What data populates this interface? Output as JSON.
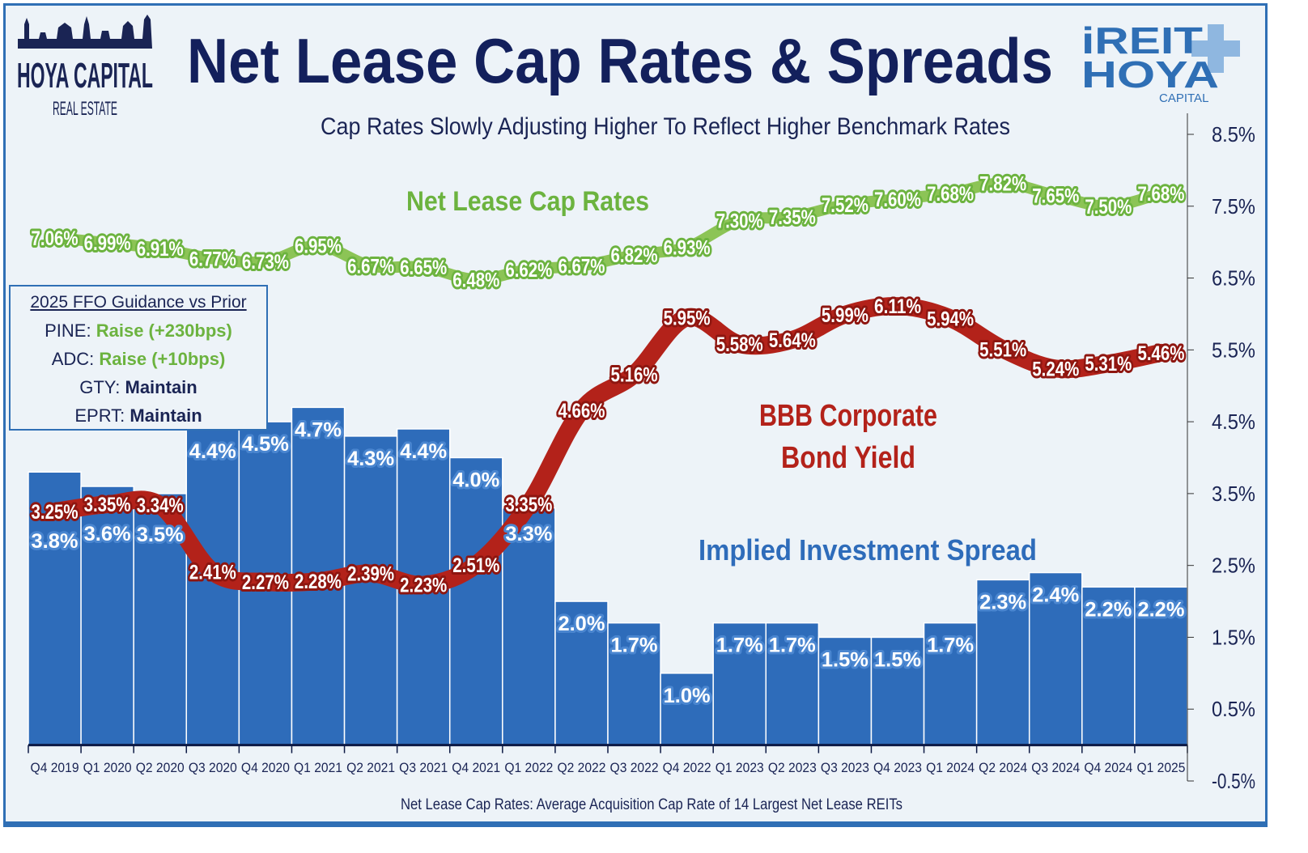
{
  "header": {
    "title": "Net Lease Cap Rates & Spreads",
    "subtitle": "Cap Rates Slowly Adjusting Higher To Reflect Higher Benchmark Rates",
    "left_logo": {
      "line1": "HOYA CAPITAL",
      "line2": "REAL ESTATE"
    },
    "right_logo": {
      "line1": "iREIT",
      "line2": "HOYA",
      "line3": "CAPITAL"
    }
  },
  "footer_note": "Net Lease Cap Rates: Average Acquisition Cap Rate of 14 Largest Net Lease REITs",
  "guidance_box": {
    "title": "2025 FFO Guidance vs Prior",
    "rows": [
      {
        "ticker": "PINE:",
        "value": "Raise (+230bps)",
        "status": "raise"
      },
      {
        "ticker": "ADC:",
        "value": "Raise (+10bps)",
        "status": "raise"
      },
      {
        "ticker": "GTY:",
        "value": "Maintain",
        "status": "maintain"
      },
      {
        "ticker": "EPRT:",
        "value": "Maintain",
        "status": "maintain"
      }
    ]
  },
  "chart_data": {
    "type": "bar+line",
    "categories": [
      "Q4 2019",
      "Q1 2020",
      "Q2 2020",
      "Q3 2020",
      "Q4 2020",
      "Q1 2021",
      "Q2 2021",
      "Q3 2021",
      "Q4 2021",
      "Q1 2022",
      "Q2 2022",
      "Q3 2022",
      "Q4 2022",
      "Q1 2023",
      "Q2 2023",
      "Q3 2023",
      "Q4 2023",
      "Q1 2024",
      "Q2 2024",
      "Q3 2024",
      "Q4 2024",
      "Q1 2025"
    ],
    "y_ticks": [
      "8.5%",
      "7.5%",
      "6.5%",
      "5.5%",
      "4.5%",
      "3.5%",
      "2.5%",
      "1.5%",
      "0.5%",
      "-0.5%"
    ],
    "ylim": [
      -0.5,
      8.5
    ],
    "y_axis_side": "right",
    "grid": false,
    "series": [
      {
        "name": "Implied Investment Spread",
        "type": "bar",
        "color": "#2e6cba",
        "values": [
          3.8,
          3.6,
          3.5,
          4.4,
          4.5,
          4.7,
          4.3,
          4.4,
          4.0,
          3.3,
          2.0,
          1.7,
          1.0,
          1.7,
          1.7,
          1.5,
          1.5,
          1.7,
          2.3,
          2.4,
          2.2,
          2.2
        ],
        "labels": [
          "3.8%",
          "3.6%",
          "3.5%",
          "4.4%",
          "4.5%",
          "4.7%",
          "4.3%",
          "4.4%",
          "4.0%",
          "3.3%",
          "2.0%",
          "1.7%",
          "1.0%",
          "1.7%",
          "1.7%",
          "1.5%",
          "1.5%",
          "1.7%",
          "2.3%",
          "2.4%",
          "2.2%",
          "2.2%"
        ]
      },
      {
        "name": "Net Lease Cap Rates",
        "type": "line",
        "color": "#8cc456",
        "label_color": "#6cb33f",
        "values": [
          7.06,
          6.99,
          6.91,
          6.77,
          6.73,
          6.95,
          6.67,
          6.65,
          6.48,
          6.62,
          6.67,
          6.82,
          6.93,
          7.3,
          7.35,
          7.52,
          7.6,
          7.68,
          7.82,
          7.65,
          7.5,
          7.68
        ],
        "labels": [
          "7.06%",
          "6.99%",
          "6.91%",
          "6.77%",
          "6.73%",
          "6.95%",
          "6.67%",
          "6.65%",
          "6.48%",
          "6.62%",
          "6.67%",
          "6.82%",
          "6.93%",
          "7.30%",
          "7.35%",
          "7.52%",
          "7.60%",
          "7.68%",
          "7.82%",
          "7.65%",
          "7.50%",
          "7.68%"
        ]
      },
      {
        "name": "BBB Corporate Bond Yield",
        "type": "line",
        "color": "#b3221a",
        "label_color": "#b3221a",
        "values": [
          3.25,
          3.35,
          3.34,
          2.41,
          2.27,
          2.28,
          2.39,
          2.23,
          2.51,
          3.35,
          4.66,
          5.16,
          5.95,
          5.58,
          5.64,
          5.99,
          6.11,
          5.94,
          5.51,
          5.24,
          5.31,
          5.46
        ],
        "labels": [
          "3.25%",
          "3.35%",
          "3.34%",
          "2.41%",
          "2.27%",
          "2.28%",
          "2.39%",
          "2.23%",
          "2.51%",
          "3.35%",
          "4.66%",
          "5.16%",
          "5.95%",
          "5.58%",
          "5.64%",
          "5.99%",
          "6.11%",
          "5.94%",
          "5.51%",
          "5.24%",
          "5.31%",
          "5.46%"
        ]
      }
    ],
    "annotations": {
      "cap_rates": "Net Lease Cap Rates",
      "bbb_line1": "BBB Corporate",
      "bbb_line2": "Bond Yield",
      "spread": "Implied Investment Spread"
    }
  }
}
